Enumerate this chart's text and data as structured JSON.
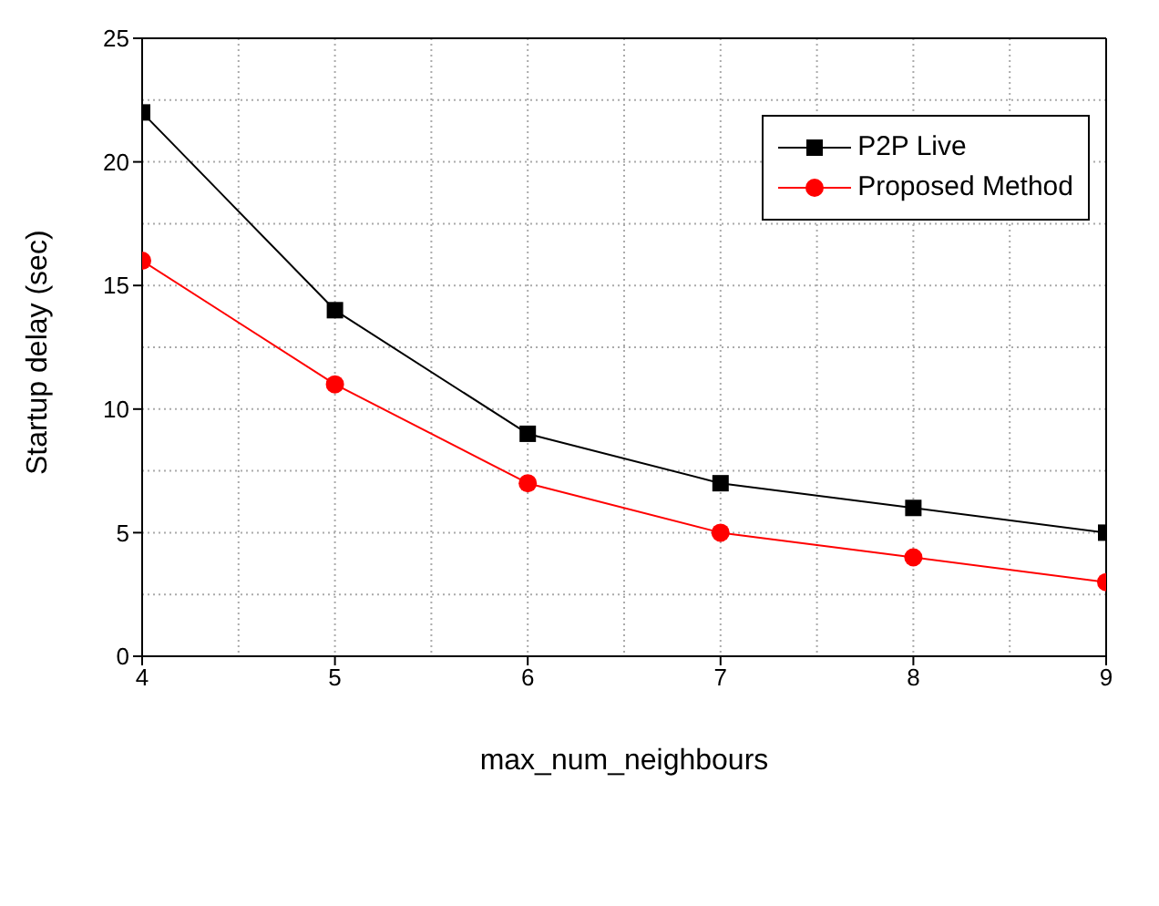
{
  "chart_data": {
    "type": "line",
    "xlabel": "max_num_neighbours",
    "ylabel": "Startup delay (sec)",
    "x": [
      4,
      5,
      6,
      7,
      8,
      9
    ],
    "series": [
      {
        "name": "P2P Live",
        "color": "#000000",
        "marker": "square",
        "values": [
          22,
          14,
          9,
          7,
          6,
          5
        ]
      },
      {
        "name": "Proposed Method",
        "color": "#ff0000",
        "marker": "circle",
        "values": [
          16,
          11,
          7,
          5,
          4,
          3
        ]
      }
    ],
    "xlim": [
      4,
      9
    ],
    "xticks": [
      4,
      5,
      6,
      7,
      8,
      9
    ],
    "ylim": [
      0,
      25
    ],
    "yticks": [
      0,
      5,
      10,
      15,
      20,
      25
    ],
    "grid": true,
    "legend": "top right",
    "line_style": "solid"
  }
}
